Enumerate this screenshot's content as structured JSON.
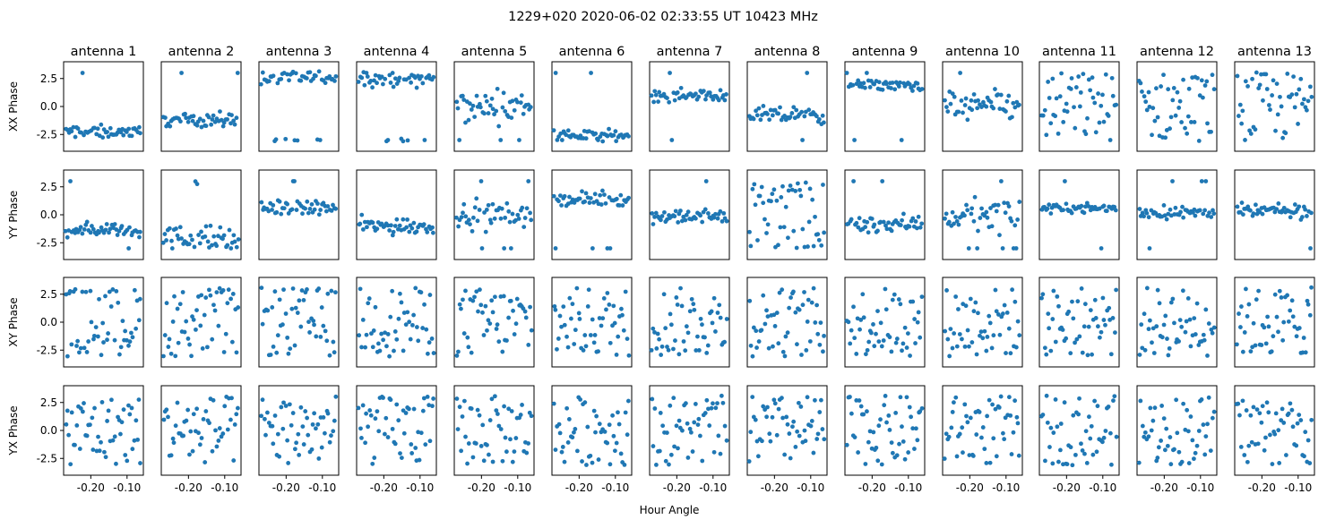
{
  "figure": {
    "suptitle": "1229+020  2020-06-02 02:33:55 UT  10423 MHz",
    "xlabel": "Hour Angle",
    "marker_color": "#1f77b4"
  },
  "chart_data": {
    "type": "scatter",
    "grid": false,
    "xlim": [
      -0.275,
      -0.055
    ],
    "ylim": [
      -4.0,
      4.0
    ],
    "x_ticks": [
      -0.2,
      -0.1
    ],
    "x_tick_labels": [
      "-0.20",
      "-0.10"
    ],
    "y_ticks": [
      -2.5,
      0.0,
      2.5
    ],
    "y_tick_labels": [
      "-2.5",
      "0.0",
      "2.5"
    ],
    "rows": [
      {
        "ylabel": "XX Phase",
        "model": [
          [
            -2.25,
            0.7
          ],
          [
            -1.2,
            0.7
          ],
          [
            2.6,
            0.8
          ],
          [
            2.5,
            0.9
          ],
          [
            0.0,
            1.7
          ],
          [
            -2.6,
            0.6
          ],
          [
            1.0,
            0.7
          ],
          [
            -0.8,
            0.9
          ],
          [
            1.9,
            0.6
          ],
          [
            0.0,
            1.8
          ],
          [
            0.0,
            2.9
          ],
          [
            0.0,
            2.9
          ],
          [
            0.0,
            2.9
          ]
        ]
      },
      {
        "ylabel": "YY Phase",
        "model": [
          [
            -1.3,
            0.8
          ],
          [
            -2.2,
            1.5
          ],
          [
            0.6,
            0.8
          ],
          [
            -1.0,
            1.0
          ],
          [
            0.0,
            1.5
          ],
          [
            1.4,
            0.7
          ],
          [
            -0.2,
            0.8
          ],
          [
            0.0,
            2.9
          ],
          [
            -0.8,
            1.0
          ],
          [
            0.0,
            1.8
          ],
          [
            0.6,
            0.5
          ],
          [
            0.2,
            0.8
          ],
          [
            0.3,
            0.8
          ]
        ]
      },
      {
        "ylabel": "XY Phase",
        "model": [
          [
            0.0,
            2.9
          ],
          [
            0.0,
            2.9
          ],
          [
            0.0,
            2.9
          ],
          [
            0.0,
            2.9
          ],
          [
            0.0,
            2.9
          ],
          [
            0.0,
            2.9
          ],
          [
            0.0,
            2.9
          ],
          [
            0.0,
            2.9
          ],
          [
            0.0,
            2.9
          ],
          [
            0.0,
            2.9
          ],
          [
            0.0,
            2.9
          ],
          [
            0.0,
            2.9
          ],
          [
            0.0,
            2.9
          ]
        ]
      },
      {
        "ylabel": "YX Phase",
        "model": [
          [
            0.0,
            2.9
          ],
          [
            0.0,
            2.9
          ],
          [
            0.0,
            2.9
          ],
          [
            0.0,
            2.9
          ],
          [
            0.0,
            2.9
          ],
          [
            0.0,
            2.9
          ],
          [
            0.0,
            2.9
          ],
          [
            0.0,
            2.9
          ],
          [
            0.0,
            2.9
          ],
          [
            0.0,
            2.9
          ],
          [
            0.0,
            2.9
          ],
          [
            0.0,
            2.9
          ],
          [
            0.0,
            2.9
          ]
        ]
      }
    ],
    "columns": [
      {
        "title": "antenna 1"
      },
      {
        "title": "antenna 2"
      },
      {
        "title": "antenna 3"
      },
      {
        "title": "antenna 4"
      },
      {
        "title": "antenna 5"
      },
      {
        "title": "antenna 6"
      },
      {
        "title": "antenna 7"
      },
      {
        "title": "antenna 8"
      },
      {
        "title": "antenna 9"
      },
      {
        "title": "antenna 10"
      },
      {
        "title": "antenna 11"
      },
      {
        "title": "antenna 12"
      },
      {
        "title": "antenna 13"
      }
    ],
    "points_per_panel": 50,
    "x_range_of_points": [
      -0.27,
      -0.06
    ]
  }
}
